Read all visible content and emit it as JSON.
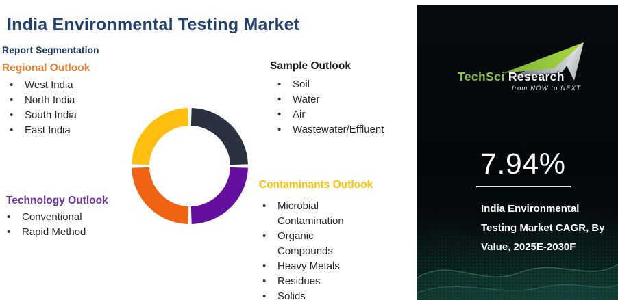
{
  "title": "India Environmental Testing Market",
  "report_segmentation_label": "Report Segmentation",
  "colors": {
    "title_navy": "#24406E",
    "regional_orange": "#ED7D31",
    "technology_purple": "#7030A0",
    "sample_black": "#1A1A1A",
    "contaminants_yellow": "#FFC000",
    "panel_background": "#05080B",
    "brand_green": "#8CC63E"
  },
  "sections": {
    "regional": {
      "heading": "Regional Outlook",
      "color": "#ED7D31",
      "items": [
        "West India",
        "North India",
        "South India",
        "East India"
      ]
    },
    "technology": {
      "heading": "Technology Outlook",
      "color": "#7030A0",
      "items": [
        "Conventional",
        "Rapid Method"
      ]
    },
    "sample": {
      "heading": "Sample Outlook",
      "color": "#1A1A1A",
      "items": [
        "Soil",
        "Water",
        "Air",
        "Wastewater/Effluent"
      ]
    },
    "contaminants": {
      "heading": "Contaminants Outlook",
      "color": "#FFC000",
      "items": [
        "Microbial Contamination",
        "Organic Compounds",
        "Heavy Metals",
        "Residues",
        "Solids"
      ]
    }
  },
  "chart_data": {
    "type": "pie",
    "donut": true,
    "title": "Report Segmentation",
    "start": "top",
    "direction": "clockwise",
    "legend_position": "none",
    "segments": [
      {
        "name": "sample",
        "label": "Sample Outlook",
        "value": 25,
        "color": "#2A3140"
      },
      {
        "name": "technology",
        "label": "Technology Outlook",
        "value": 25,
        "color": "#650FA0"
      },
      {
        "name": "regional",
        "label": "Regional Outlook",
        "value": 25,
        "color": "#EF6312"
      },
      {
        "name": "contaminants",
        "label": "Contaminants Outlook",
        "value": 25,
        "color": "#FEBF10"
      }
    ]
  },
  "panel": {
    "brand": {
      "name_primary": "TechSci",
      "name_secondary": " Research",
      "tagline": "from NOW to NEXT"
    },
    "stat_value": "7.94%",
    "caption": "India Environmental Testing Market CAGR, By Value, 2025E-2030F",
    "caption_lines": [
      "India Environmental",
      "Testing Market CAGR, By",
      "Value, 2025E-2030F"
    ]
  }
}
